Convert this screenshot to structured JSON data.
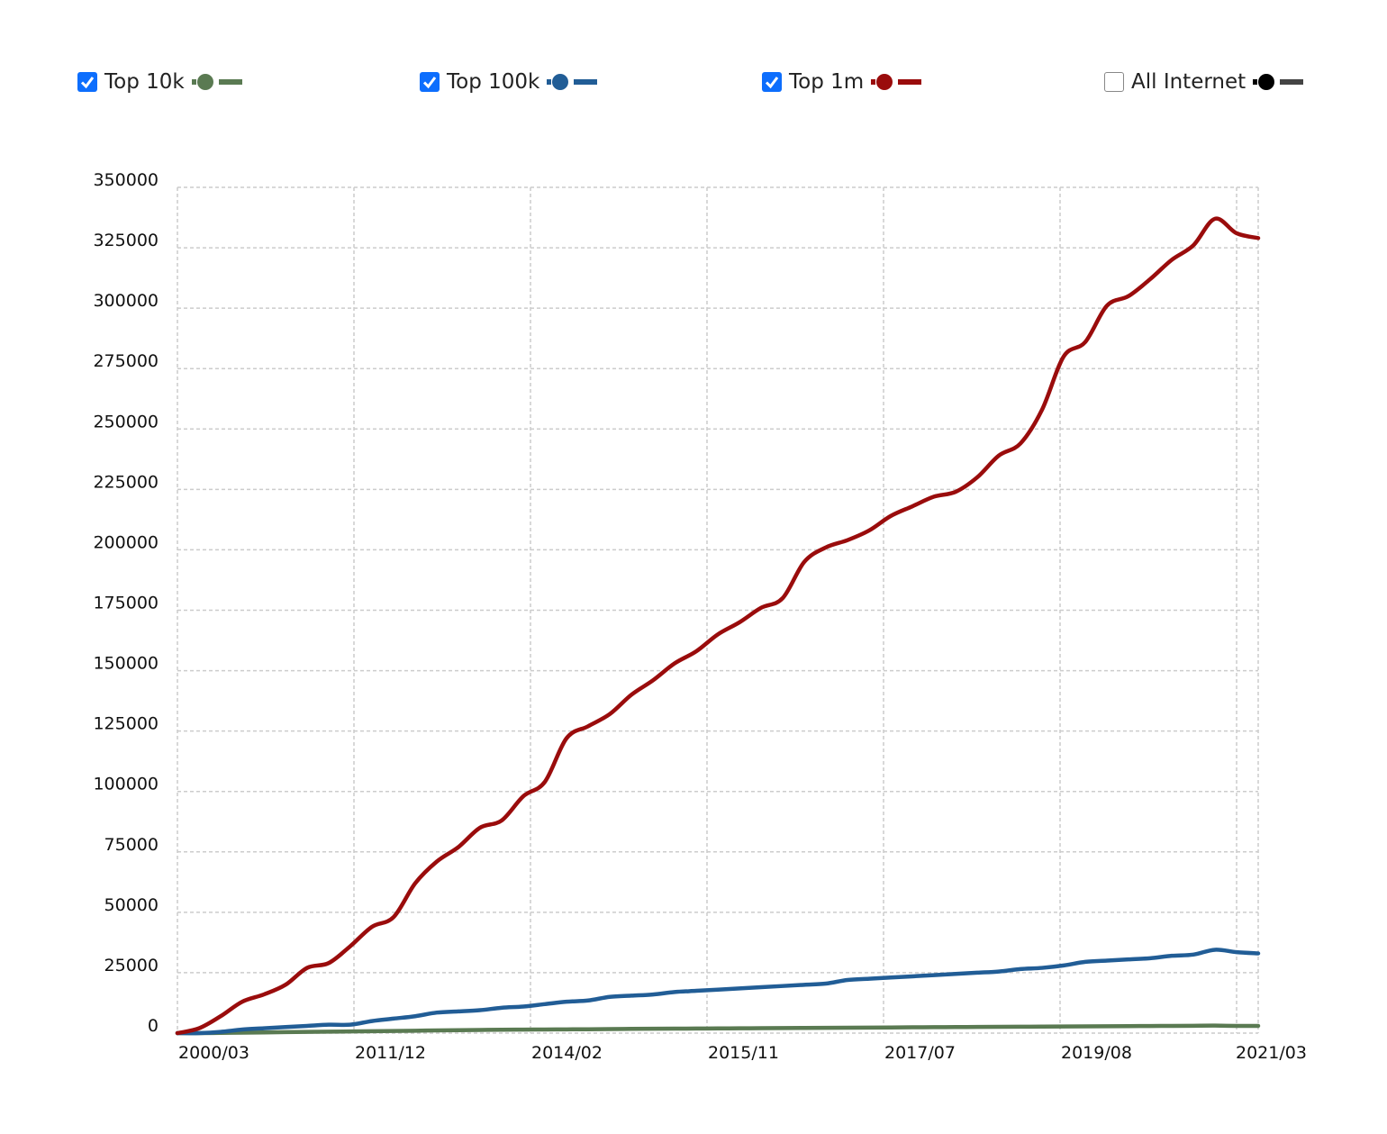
{
  "legend": [
    {
      "label": "Top 10k",
      "checked": true,
      "color": "#5a7a52"
    },
    {
      "label": "Top 100k",
      "checked": true,
      "color": "#215d96"
    },
    {
      "label": "Top 1m",
      "checked": true,
      "color": "#9a0c0c"
    },
    {
      "label": "All Internet",
      "checked": false,
      "color": "#000000"
    }
  ],
  "chart_data": {
    "type": "line",
    "title": "",
    "xlabel": "",
    "ylabel": "",
    "ylim": [
      0,
      350000
    ],
    "y_ticks": [
      0,
      25000,
      50000,
      75000,
      100000,
      125000,
      150000,
      175000,
      200000,
      225000,
      250000,
      275000,
      300000,
      325000,
      350000
    ],
    "x_ticks": [
      "2000/03",
      "2011/12",
      "2014/02",
      "2015/11",
      "2017/07",
      "2019/08",
      "2021/03"
    ],
    "x_range": [
      "2000/03",
      "2021/03"
    ],
    "grid": true,
    "legend_position": "top",
    "series": [
      {
        "name": "Top 1m",
        "color": "#9a0c0c",
        "values": [
          0,
          2000,
          7000,
          13000,
          16000,
          20000,
          27000,
          29000,
          36000,
          44000,
          48000,
          62000,
          71000,
          77000,
          85000,
          88000,
          98000,
          104000,
          122000,
          127000,
          132000,
          140000,
          146000,
          153000,
          158000,
          165000,
          170000,
          176000,
          180000,
          195000,
          201000,
          204000,
          208000,
          214000,
          218000,
          222000,
          224000,
          230000,
          239000,
          244000,
          258000,
          280000,
          286000,
          301000,
          305000,
          312000,
          320000,
          326000,
          337000,
          331000,
          329000
        ]
      },
      {
        "name": "Top 100k",
        "color": "#215d96",
        "values": [
          0,
          0,
          500,
          1500,
          2000,
          2500,
          3000,
          3500,
          3500,
          5000,
          6000,
          7000,
          8500,
          9000,
          9500,
          10500,
          11000,
          12000,
          13000,
          13500,
          15000,
          15500,
          16000,
          17000,
          17500,
          18000,
          18500,
          19000,
          19500,
          20000,
          20500,
          22000,
          22500,
          23000,
          23500,
          24000,
          24500,
          25000,
          25500,
          26500,
          27000,
          28000,
          29500,
          30000,
          30500,
          31000,
          32000,
          32500,
          34500,
          33500,
          33000
        ]
      },
      {
        "name": "Top 10k",
        "color": "#5a7a52",
        "values": [
          0,
          0,
          100,
          200,
          300,
          400,
          500,
          600,
          700,
          800,
          900,
          1000,
          1100,
          1200,
          1300,
          1400,
          1450,
          1500,
          1550,
          1600,
          1700,
          1750,
          1800,
          1850,
          1900,
          1950,
          2000,
          2050,
          2100,
          2150,
          2200,
          2250,
          2300,
          2350,
          2400,
          2450,
          2500,
          2550,
          2600,
          2650,
          2700,
          2750,
          2800,
          2850,
          2900,
          2950,
          3000,
          3050,
          3100,
          3000,
          3000
        ]
      }
    ]
  }
}
